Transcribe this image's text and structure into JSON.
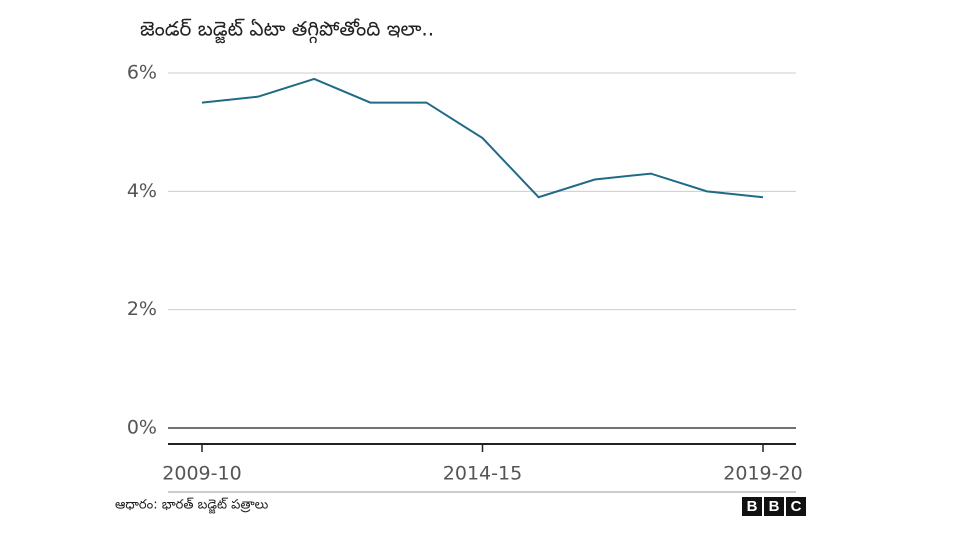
{
  "chart_data": {
    "type": "line",
    "title": "జెండర్ బడ్జెట్ ఏటా తగ్గిపోతోంది ఇలా..",
    "categories": [
      "2009-10",
      null,
      null,
      null,
      null,
      "2014-15",
      null,
      null,
      null,
      null,
      "2019-20"
    ],
    "series": [
      {
        "name": null,
        "color": "#1f6b87",
        "values": [
          5.5,
          5.6,
          5.9,
          5.5,
          5.5,
          4.9,
          3.9,
          4.2,
          4.3,
          4.0,
          3.9
        ]
      }
    ],
    "ylim": [
      0,
      6
    ],
    "yticks": [
      {
        "value": 0,
        "label": "0%"
      },
      {
        "value": 2,
        "label": "2%"
      },
      {
        "value": 4,
        "label": "4%"
      },
      {
        "value": 6,
        "label": "6%"
      }
    ],
    "grid": true,
    "source": "ఆధారం: భారత్ బడ్జెట్ పత్రాలు",
    "logo": [
      "B",
      "B",
      "C"
    ]
  }
}
